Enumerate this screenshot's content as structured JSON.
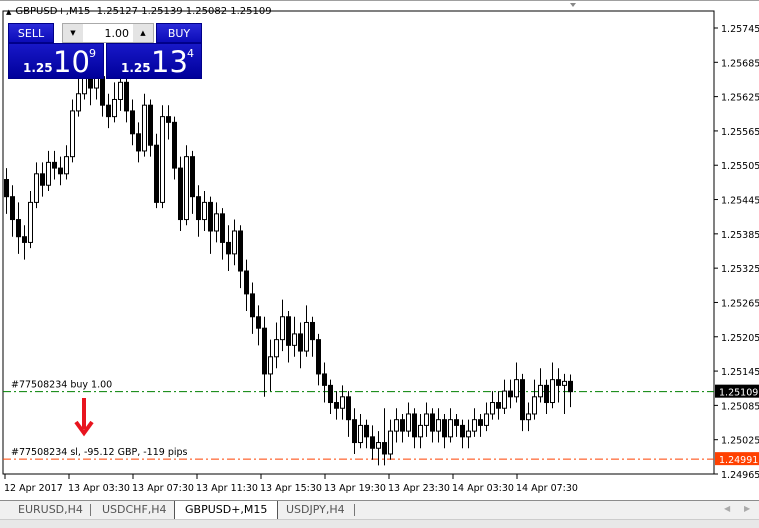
{
  "header": {
    "symbol": "GBPUSD+,M15",
    "ohlc": "1.25127 1.25139 1.25082 1.25109"
  },
  "trade_panel": {
    "sell_label": "SELL",
    "buy_label": "BUY",
    "volume": "1.00",
    "sell_prefix": "1.25",
    "sell_big": "10",
    "sell_point": "9",
    "buy_prefix": "1.25",
    "buy_big": "13",
    "buy_point": "4"
  },
  "orders": {
    "buy_label": "#77508234 buy 1.00",
    "sl_label": "#77508234 sl, -95.12 GBP, -119 pips",
    "buy_price": 1.25109,
    "sl_price": 1.24991,
    "buy_price_text": "1.25109",
    "sl_price_text": "1.24991",
    "buy_color": "#008000",
    "sl_color": "#ff4000"
  },
  "tabs": [
    {
      "label": "EURUSD,H4"
    },
    {
      "label": "USDCHF,H4"
    },
    {
      "label": "GBPUSD+,M15",
      "active": true
    },
    {
      "label": "USDJPY,H4"
    }
  ],
  "chart_data": {
    "type": "candlestick",
    "ylim": [
      1.24965,
      1.25745
    ],
    "y_ticks": [
      "1.25745",
      "1.25685",
      "1.25625",
      "1.25565",
      "1.25505",
      "1.25445",
      "1.25385",
      "1.25325",
      "1.25265",
      "1.25205",
      "1.25145",
      "1.25085",
      "1.25025",
      "1.24965"
    ],
    "x_ticks": [
      "12 Apr 2017",
      "13 Apr 03:30",
      "13 Apr 07:30",
      "13 Apr 11:30",
      "13 Apr 15:30",
      "13 Apr 19:30",
      "13 Apr 23:30",
      "14 Apr 03:30",
      "14 Apr 07:30"
    ],
    "ohlc": [
      [
        1.2548,
        1.255,
        1.2542,
        1.2545
      ],
      [
        1.2545,
        1.2547,
        1.2538,
        1.2541
      ],
      [
        1.2541,
        1.2544,
        1.2535,
        1.2538
      ],
      [
        1.2538,
        1.254,
        1.2534,
        1.2537
      ],
      [
        1.2537,
        1.2546,
        1.2536,
        1.2544
      ],
      [
        1.2544,
        1.2551,
        1.2543,
        1.2549
      ],
      [
        1.2549,
        1.2551,
        1.2545,
        1.2547
      ],
      [
        1.2547,
        1.2553,
        1.2546,
        1.2551
      ],
      [
        1.2551,
        1.2553,
        1.2548,
        1.255
      ],
      [
        1.255,
        1.2552,
        1.2547,
        1.2549
      ],
      [
        1.2549,
        1.2554,
        1.2548,
        1.2552
      ],
      [
        1.2552,
        1.2562,
        1.2551,
        1.256
      ],
      [
        1.256,
        1.2566,
        1.2559,
        1.2563
      ],
      [
        1.2563,
        1.2569,
        1.2562,
        1.2566
      ],
      [
        1.2566,
        1.2568,
        1.2561,
        1.2564
      ],
      [
        1.2564,
        1.2568,
        1.2562,
        1.2566
      ],
      [
        1.2566,
        1.2567,
        1.2559,
        1.2561
      ],
      [
        1.2561,
        1.2563,
        1.2557,
        1.2559
      ],
      [
        1.2559,
        1.2565,
        1.2558,
        1.2562
      ],
      [
        1.2562,
        1.2568,
        1.256,
        1.2565
      ],
      [
        1.2565,
        1.2566,
        1.2558,
        1.256
      ],
      [
        1.256,
        1.2562,
        1.2554,
        1.2556
      ],
      [
        1.2556,
        1.2558,
        1.2551,
        1.2553
      ],
      [
        1.2553,
        1.2563,
        1.2552,
        1.2561
      ],
      [
        1.2561,
        1.2562,
        1.2552,
        1.2554
      ],
      [
        1.2554,
        1.2556,
        1.2543,
        1.2544
      ],
      [
        1.2544,
        1.2561,
        1.2543,
        1.2559
      ],
      [
        1.2559,
        1.2561,
        1.2555,
        1.2558
      ],
      [
        1.2558,
        1.2559,
        1.2548,
        1.255
      ],
      [
        1.255,
        1.2552,
        1.2539,
        1.2541
      ],
      [
        1.2541,
        1.2554,
        1.254,
        1.2552
      ],
      [
        1.2552,
        1.2553,
        1.2542,
        1.2545
      ],
      [
        1.2545,
        1.2547,
        1.2538,
        1.2541
      ],
      [
        1.2541,
        1.2546,
        1.2539,
        1.2544
      ],
      [
        1.2544,
        1.2545,
        1.2535,
        1.2539
      ],
      [
        1.2539,
        1.2544,
        1.2537,
        1.2542
      ],
      [
        1.2542,
        1.2543,
        1.2534,
        1.2537
      ],
      [
        1.2537,
        1.254,
        1.2532,
        1.2535
      ],
      [
        1.2535,
        1.2541,
        1.2533,
        1.2539
      ],
      [
        1.2539,
        1.254,
        1.2529,
        1.2532
      ],
      [
        1.2532,
        1.2534,
        1.2525,
        1.2528
      ],
      [
        1.2528,
        1.253,
        1.2521,
        1.2524
      ],
      [
        1.2524,
        1.2526,
        1.2519,
        1.2522
      ],
      [
        1.2522,
        1.2524,
        1.251,
        1.2514
      ],
      [
        1.2514,
        1.252,
        1.2511,
        1.2517
      ],
      [
        1.2517,
        1.2523,
        1.2515,
        1.252
      ],
      [
        1.252,
        1.2527,
        1.2518,
        1.2524
      ],
      [
        1.2524,
        1.2525,
        1.2516,
        1.2519
      ],
      [
        1.2519,
        1.2524,
        1.2517,
        1.2521
      ],
      [
        1.2521,
        1.2523,
        1.2515,
        1.2518
      ],
      [
        1.2518,
        1.2526,
        1.2517,
        1.2523
      ],
      [
        1.2523,
        1.2524,
        1.2517,
        1.252
      ],
      [
        1.252,
        1.2521,
        1.2512,
        1.2514
      ],
      [
        1.2514,
        1.2516,
        1.2509,
        1.2512
      ],
      [
        1.2512,
        1.2513,
        1.2507,
        1.2509
      ],
      [
        1.2509,
        1.2511,
        1.2506,
        1.2508
      ],
      [
        1.2508,
        1.2512,
        1.2506,
        1.251
      ],
      [
        1.251,
        1.2511,
        1.2503,
        1.2506
      ],
      [
        1.2506,
        1.2508,
        1.25,
        1.2502
      ],
      [
        1.2502,
        1.2507,
        1.2501,
        1.2505
      ],
      [
        1.2505,
        1.2506,
        1.2501,
        1.2503
      ],
      [
        1.2503,
        1.2505,
        1.2499,
        1.2501
      ],
      [
        1.2501,
        1.2504,
        1.2498,
        1.2502
      ],
      [
        1.2502,
        1.2508,
        1.2498,
        1.25
      ],
      [
        1.25,
        1.2506,
        1.2499,
        1.2504
      ],
      [
        1.2504,
        1.2508,
        1.2502,
        1.2506
      ],
      [
        1.2506,
        1.2507,
        1.2502,
        1.2504
      ],
      [
        1.2504,
        1.2509,
        1.2503,
        1.2507
      ],
      [
        1.2507,
        1.2508,
        1.2501,
        1.2503
      ],
      [
        1.2503,
        1.2507,
        1.2501,
        1.2505
      ],
      [
        1.2505,
        1.2509,
        1.2503,
        1.2507
      ],
      [
        1.2507,
        1.2508,
        1.2502,
        1.2504
      ],
      [
        1.2504,
        1.2508,
        1.2502,
        1.2506
      ],
      [
        1.2506,
        1.2507,
        1.2501,
        1.2503
      ],
      [
        1.2503,
        1.2508,
        1.2502,
        1.2506
      ],
      [
        1.2506,
        1.2507,
        1.2503,
        1.2505
      ],
      [
        1.2505,
        1.2506,
        1.2501,
        1.2503
      ],
      [
        1.2503,
        1.2506,
        1.2501,
        1.2504
      ],
      [
        1.2504,
        1.2508,
        1.2503,
        1.2506
      ],
      [
        1.2506,
        1.2507,
        1.2503,
        1.2505
      ],
      [
        1.2505,
        1.2509,
        1.2504,
        1.2507
      ],
      [
        1.2507,
        1.2511,
        1.2506,
        1.2509
      ],
      [
        1.2509,
        1.2511,
        1.2506,
        1.2508
      ],
      [
        1.2508,
        1.2513,
        1.2507,
        1.2511
      ],
      [
        1.2511,
        1.2513,
        1.2508,
        1.251
      ],
      [
        1.251,
        1.2516,
        1.2509,
        1.2513
      ],
      [
        1.2513,
        1.2514,
        1.2504,
        1.2506
      ],
      [
        1.2506,
        1.2509,
        1.2504,
        1.2507
      ],
      [
        1.2507,
        1.2513,
        1.2506,
        1.251
      ],
      [
        1.251,
        1.2515,
        1.2509,
        1.2512
      ],
      [
        1.2512,
        1.2513,
        1.2507,
        1.2509
      ],
      [
        1.2509,
        1.2516,
        1.2508,
        1.2513
      ],
      [
        1.2513,
        1.2515,
        1.2509,
        1.2512
      ],
      [
        1.2512,
        1.2514,
        1.2507,
        1.25127
      ],
      [
        1.25127,
        1.25139,
        1.25082,
        1.25109
      ]
    ]
  }
}
